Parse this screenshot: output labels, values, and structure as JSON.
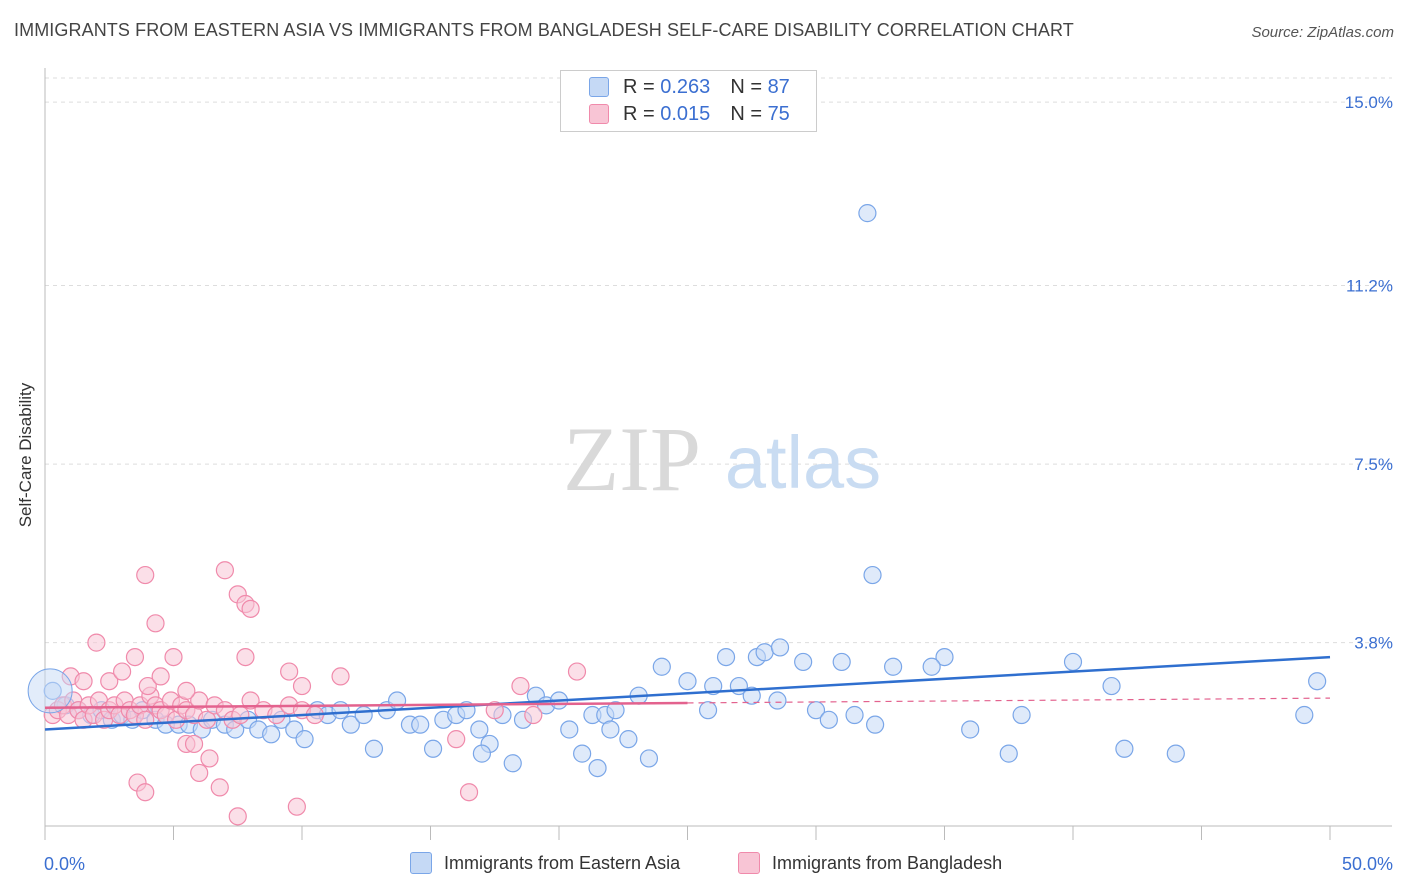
{
  "header": {
    "title": "IMMIGRANTS FROM EASTERN ASIA VS IMMIGRANTS FROM BANGLADESH SELF-CARE DISABILITY CORRELATION CHART",
    "source": "Source: ZipAtlas.com"
  },
  "watermark": {
    "zip": "ZIP",
    "atlas": "atlas"
  },
  "legend_top": [
    {
      "r_label": "R =",
      "r_value": "0.263",
      "n_label": "N =",
      "n_value": "87"
    },
    {
      "r_label": "R =",
      "r_value": "0.015",
      "n_label": "N =",
      "n_value": "75"
    }
  ],
  "chart_data": {
    "type": "scatter",
    "title": "IMMIGRANTS FROM EASTERN ASIA VS IMMIGRANTS FROM BANGLADESH SELF-CARE DISABILITY CORRELATION CHART",
    "xlabel": "",
    "ylabel": "Self-Care Disability",
    "xlim": [
      0,
      50
    ],
    "ylim": [
      0,
      15.5
    ],
    "x_tick_labels": [
      "0.0%",
      "50.0%"
    ],
    "y_ticks": [
      3.8,
      7.5,
      11.2,
      15.0
    ],
    "y_tick_labels": [
      "3.8%",
      "7.5%",
      "11.2%",
      "15.0%"
    ],
    "x_minor_ticks": [
      0,
      5,
      10,
      15,
      20,
      25,
      30,
      35,
      40,
      45,
      50
    ],
    "grid": "horizontal dashed",
    "legend_position": "bottom",
    "series": [
      {
        "name": "Immigrants from Eastern Asia",
        "color": "#7aa6e8",
        "fill": "#c5d9f5",
        "line_color": "#2f6fcf",
        "trend": {
          "x": [
            0,
            50
          ],
          "y": [
            2.0,
            3.5
          ],
          "dashed_after": 50
        },
        "points": [
          [
            0.3,
            2.8
          ],
          [
            0.8,
            2.5
          ],
          [
            1.3,
            2.4
          ],
          [
            1.8,
            2.3
          ],
          [
            2.2,
            2.4
          ],
          [
            2.6,
            2.2
          ],
          [
            3.0,
            2.3
          ],
          [
            3.4,
            2.2
          ],
          [
            3.8,
            2.4
          ],
          [
            4.3,
            2.2
          ],
          [
            4.7,
            2.1
          ],
          [
            5.2,
            2.1
          ],
          [
            5.6,
            2.1
          ],
          [
            6.1,
            2.0
          ],
          [
            6.5,
            2.2
          ],
          [
            7.0,
            2.1
          ],
          [
            7.4,
            2.0
          ],
          [
            7.9,
            2.2
          ],
          [
            8.3,
            2.0
          ],
          [
            8.8,
            1.9
          ],
          [
            9.2,
            2.2
          ],
          [
            9.7,
            2.0
          ],
          [
            10.1,
            1.8
          ],
          [
            10.6,
            2.4
          ],
          [
            11.0,
            2.3
          ],
          [
            11.5,
            2.4
          ],
          [
            11.9,
            2.1
          ],
          [
            12.4,
            2.3
          ],
          [
            12.8,
            1.6
          ],
          [
            13.3,
            2.4
          ],
          [
            13.7,
            2.6
          ],
          [
            14.2,
            2.1
          ],
          [
            14.6,
            2.1
          ],
          [
            15.1,
            1.6
          ],
          [
            15.5,
            2.2
          ],
          [
            16.0,
            2.3
          ],
          [
            16.4,
            2.4
          ],
          [
            16.9,
            2.0
          ],
          [
            17.3,
            1.7
          ],
          [
            17.8,
            2.3
          ],
          [
            18.2,
            1.3
          ],
          [
            18.6,
            2.2
          ],
          [
            19.1,
            2.7
          ],
          [
            19.5,
            2.5
          ],
          [
            20.0,
            2.6
          ],
          [
            20.4,
            2.0
          ],
          [
            20.9,
            1.5
          ],
          [
            21.3,
            2.3
          ],
          [
            21.8,
            2.3
          ],
          [
            22.2,
            2.4
          ],
          [
            22.7,
            1.8
          ],
          [
            23.1,
            2.7
          ],
          [
            24.0,
            3.3
          ],
          [
            25.0,
            3.0
          ],
          [
            26.0,
            2.9
          ],
          [
            27.0,
            2.9
          ],
          [
            27.5,
            2.7
          ],
          [
            28.5,
            2.6
          ],
          [
            29.5,
            3.4
          ],
          [
            30.0,
            2.4
          ],
          [
            31.0,
            3.4
          ],
          [
            32.3,
            2.1
          ],
          [
            33.0,
            3.3
          ],
          [
            35.0,
            3.5
          ],
          [
            36.0,
            2.0
          ],
          [
            37.5,
            1.5
          ],
          [
            38.0,
            2.3
          ],
          [
            40.0,
            3.4
          ],
          [
            41.5,
            2.9
          ],
          [
            42.0,
            1.6
          ],
          [
            44.0,
            1.5
          ],
          [
            49.0,
            2.3
          ],
          [
            49.5,
            3.0
          ],
          [
            26.5,
            3.5
          ],
          [
            27.7,
            3.5
          ],
          [
            28.0,
            3.6
          ],
          [
            28.6,
            3.7
          ],
          [
            21.5,
            1.2
          ],
          [
            17.0,
            1.5
          ],
          [
            32.0,
            12.7
          ],
          [
            32.2,
            5.2
          ],
          [
            34.5,
            3.3
          ],
          [
            31.5,
            2.3
          ],
          [
            30.5,
            2.2
          ],
          [
            23.5,
            1.4
          ],
          [
            22.0,
            2.0
          ],
          [
            25.8,
            2.4
          ]
        ]
      },
      {
        "name": "Immigrants from Bangladesh",
        "color": "#f08aab",
        "fill": "#f8c5d5",
        "line_color": "#e3628e",
        "trend": {
          "x": [
            0,
            25
          ],
          "y": [
            2.45,
            2.55
          ],
          "dashed_after": 25
        },
        "dashed_trend": {
          "x": [
            25,
            50
          ],
          "y": [
            2.55,
            2.65
          ]
        },
        "points": [
          [
            0.3,
            2.3
          ],
          [
            0.5,
            2.4
          ],
          [
            0.7,
            2.5
          ],
          [
            0.9,
            2.3
          ],
          [
            1.1,
            2.6
          ],
          [
            1.3,
            2.4
          ],
          [
            1.5,
            2.2
          ],
          [
            1.7,
            2.5
          ],
          [
            1.9,
            2.3
          ],
          [
            2.1,
            2.6
          ],
          [
            2.3,
            2.2
          ],
          [
            2.5,
            2.4
          ],
          [
            2.7,
            2.5
          ],
          [
            2.9,
            2.3
          ],
          [
            3.1,
            2.6
          ],
          [
            3.3,
            2.4
          ],
          [
            3.5,
            2.3
          ],
          [
            3.7,
            2.5
          ],
          [
            3.9,
            2.2
          ],
          [
            4.1,
            2.7
          ],
          [
            4.3,
            2.5
          ],
          [
            4.5,
            2.4
          ],
          [
            4.7,
            2.3
          ],
          [
            4.9,
            2.6
          ],
          [
            5.1,
            2.2
          ],
          [
            5.3,
            2.5
          ],
          [
            5.5,
            2.4
          ],
          [
            5.8,
            2.3
          ],
          [
            6.0,
            2.6
          ],
          [
            6.3,
            2.2
          ],
          [
            6.6,
            2.5
          ],
          [
            7.0,
            2.4
          ],
          [
            7.3,
            2.2
          ],
          [
            7.6,
            2.3
          ],
          [
            8.0,
            2.6
          ],
          [
            8.5,
            2.4
          ],
          [
            9.0,
            2.3
          ],
          [
            9.5,
            2.5
          ],
          [
            10.0,
            2.4
          ],
          [
            10.5,
            2.3
          ],
          [
            1.0,
            3.1
          ],
          [
            1.5,
            3.0
          ],
          [
            2.0,
            3.8
          ],
          [
            2.5,
            3.0
          ],
          [
            3.0,
            3.2
          ],
          [
            3.5,
            3.5
          ],
          [
            4.0,
            2.9
          ],
          [
            4.5,
            3.1
          ],
          [
            5.0,
            3.5
          ],
          [
            5.5,
            2.8
          ],
          [
            3.9,
            5.2
          ],
          [
            4.3,
            4.2
          ],
          [
            7.0,
            5.3
          ],
          [
            7.5,
            4.8
          ],
          [
            7.8,
            4.6
          ],
          [
            8.0,
            4.5
          ],
          [
            7.8,
            3.5
          ],
          [
            9.5,
            3.2
          ],
          [
            10.0,
            2.9
          ],
          [
            11.5,
            3.1
          ],
          [
            3.6,
            0.9
          ],
          [
            3.9,
            0.7
          ],
          [
            5.5,
            1.7
          ],
          [
            5.8,
            1.7
          ],
          [
            6.0,
            1.1
          ],
          [
            6.4,
            1.4
          ],
          [
            6.8,
            0.8
          ],
          [
            7.5,
            0.2
          ],
          [
            9.8,
            0.4
          ],
          [
            16.0,
            1.8
          ],
          [
            16.5,
            0.7
          ],
          [
            18.5,
            2.9
          ],
          [
            20.7,
            3.2
          ],
          [
            19.0,
            2.3
          ],
          [
            17.5,
            2.4
          ]
        ]
      }
    ]
  },
  "legend_bottom": [
    {
      "label": "Immigrants from Eastern Asia"
    },
    {
      "label": "Immigrants from Bangladesh"
    }
  ]
}
